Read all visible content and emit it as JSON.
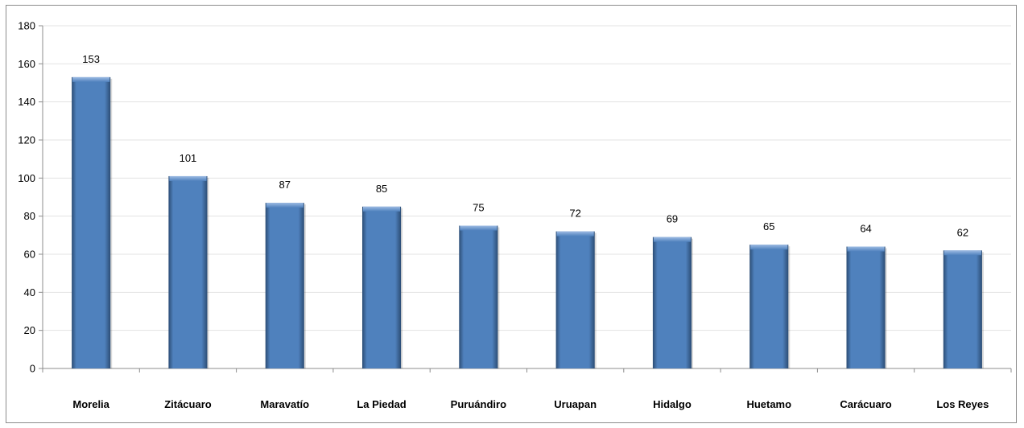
{
  "chart_data": {
    "type": "bar",
    "categories": [
      "Morelia",
      "Zitácuaro",
      "Maravatío",
      "La Piedad",
      "Puruándiro",
      "Uruapan",
      "Hidalgo",
      "Huetamo",
      "Carácuaro",
      "Los Reyes"
    ],
    "values": [
      153,
      101,
      87,
      85,
      75,
      72,
      69,
      65,
      64,
      62
    ],
    "ylim": [
      0,
      180
    ],
    "yticks": [
      0,
      20,
      40,
      60,
      80,
      100,
      120,
      140,
      160,
      180
    ],
    "grid": true,
    "legend": "none",
    "colors": {
      "bar": "#4f81bd",
      "bar_dark": "#2c4d75",
      "bar_light": "#9dbbe3",
      "grid": "#e3e3e3",
      "axis": "#8c8c8c"
    }
  }
}
